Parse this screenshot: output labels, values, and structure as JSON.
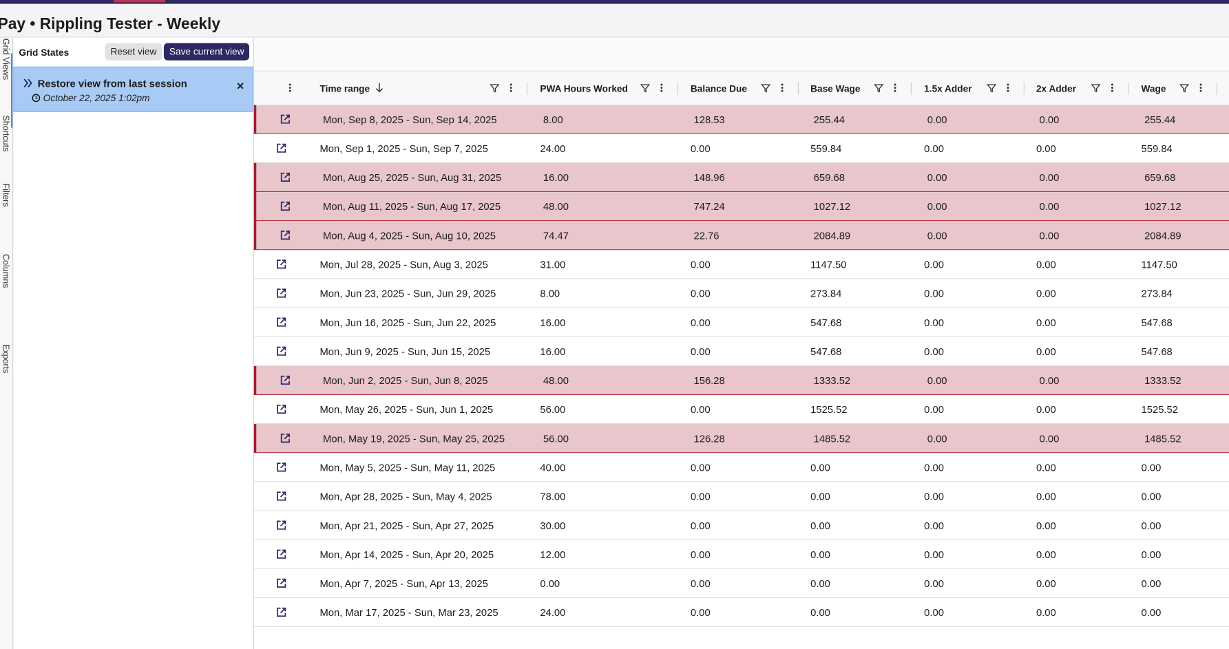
{
  "header": {
    "title": "Pay • Rippling Tester - Weekly"
  },
  "side_tabs": [
    "Grid Views",
    "Shortcuts",
    "Filters",
    "Columns",
    "Exports"
  ],
  "grid_states": {
    "title": "Grid States",
    "reset_button": "Reset view",
    "save_button": "Save current view",
    "restore": {
      "title": "Restore view from last session",
      "timestamp": "October 22, 2025 1:02pm"
    }
  },
  "table": {
    "columns": [
      "Time range",
      "PWA Hours Worked",
      "Balance Due",
      "Base Wage",
      "1.5x Adder",
      "2x Adder",
      "Wage"
    ],
    "rows": [
      {
        "cells": [
          "Mon, Sep 8, 2025 - Sun, Sep 14, 2025",
          "8.00",
          "128.53",
          "255.44",
          "0.00",
          "0.00",
          "255.44"
        ],
        "flagged": true
      },
      {
        "cells": [
          "Mon, Sep 1, 2025 - Sun, Sep 7, 2025",
          "24.00",
          "0.00",
          "559.84",
          "0.00",
          "0.00",
          "559.84"
        ],
        "flagged": false
      },
      {
        "cells": [
          "Mon, Aug 25, 2025 - Sun, Aug 31, 2025",
          "16.00",
          "148.96",
          "659.68",
          "0.00",
          "0.00",
          "659.68"
        ],
        "flagged": true
      },
      {
        "cells": [
          "Mon, Aug 11, 2025 - Sun, Aug 17, 2025",
          "48.00",
          "747.24",
          "1027.12",
          "0.00",
          "0.00",
          "1027.12"
        ],
        "flagged": true
      },
      {
        "cells": [
          "Mon, Aug 4, 2025 - Sun, Aug 10, 2025",
          "74.47",
          "22.76",
          "2084.89",
          "0.00",
          "0.00",
          "2084.89"
        ],
        "flagged": true
      },
      {
        "cells": [
          "Mon, Jul 28, 2025 - Sun, Aug 3, 2025",
          "31.00",
          "0.00",
          "1147.50",
          "0.00",
          "0.00",
          "1147.50"
        ],
        "flagged": false
      },
      {
        "cells": [
          "Mon, Jun 23, 2025 - Sun, Jun 29, 2025",
          "8.00",
          "0.00",
          "273.84",
          "0.00",
          "0.00",
          "273.84"
        ],
        "flagged": false
      },
      {
        "cells": [
          "Mon, Jun 16, 2025 - Sun, Jun 22, 2025",
          "16.00",
          "0.00",
          "547.68",
          "0.00",
          "0.00",
          "547.68"
        ],
        "flagged": false
      },
      {
        "cells": [
          "Mon, Jun 9, 2025 - Sun, Jun 15, 2025",
          "16.00",
          "0.00",
          "547.68",
          "0.00",
          "0.00",
          "547.68"
        ],
        "flagged": false
      },
      {
        "cells": [
          "Mon, Jun 2, 2025 - Sun, Jun 8, 2025",
          "48.00",
          "156.28",
          "1333.52",
          "0.00",
          "0.00",
          "1333.52"
        ],
        "flagged": true
      },
      {
        "cells": [
          "Mon, May 26, 2025 - Sun, Jun 1, 2025",
          "56.00",
          "0.00",
          "1525.52",
          "0.00",
          "0.00",
          "1525.52"
        ],
        "flagged": false
      },
      {
        "cells": [
          "Mon, May 19, 2025 - Sun, May 25, 2025",
          "56.00",
          "126.28",
          "1485.52",
          "0.00",
          "0.00",
          "1485.52"
        ],
        "flagged": true
      },
      {
        "cells": [
          "Mon, May 5, 2025 - Sun, May 11, 2025",
          "40.00",
          "0.00",
          "0.00",
          "0.00",
          "0.00",
          "0.00"
        ],
        "flagged": false
      },
      {
        "cells": [
          "Mon, Apr 28, 2025 - Sun, May 4, 2025",
          "78.00",
          "0.00",
          "0.00",
          "0.00",
          "0.00",
          "0.00"
        ],
        "flagged": false
      },
      {
        "cells": [
          "Mon, Apr 21, 2025 - Sun, Apr 27, 2025",
          "30.00",
          "0.00",
          "0.00",
          "0.00",
          "0.00",
          "0.00"
        ],
        "flagged": false
      },
      {
        "cells": [
          "Mon, Apr 14, 2025 - Sun, Apr 20, 2025",
          "12.00",
          "0.00",
          "0.00",
          "0.00",
          "0.00",
          "0.00"
        ],
        "flagged": false
      },
      {
        "cells": [
          "Mon, Apr 7, 2025 - Sun, Apr 13, 2025",
          "0.00",
          "0.00",
          "0.00",
          "0.00",
          "0.00",
          "0.00"
        ],
        "flagged": false
      },
      {
        "cells": [
          "Mon, Mar 17, 2025 - Sun, Mar 23, 2025",
          "24.00",
          "0.00",
          "0.00",
          "0.00",
          "0.00",
          "0.00"
        ],
        "flagged": false
      }
    ]
  }
}
